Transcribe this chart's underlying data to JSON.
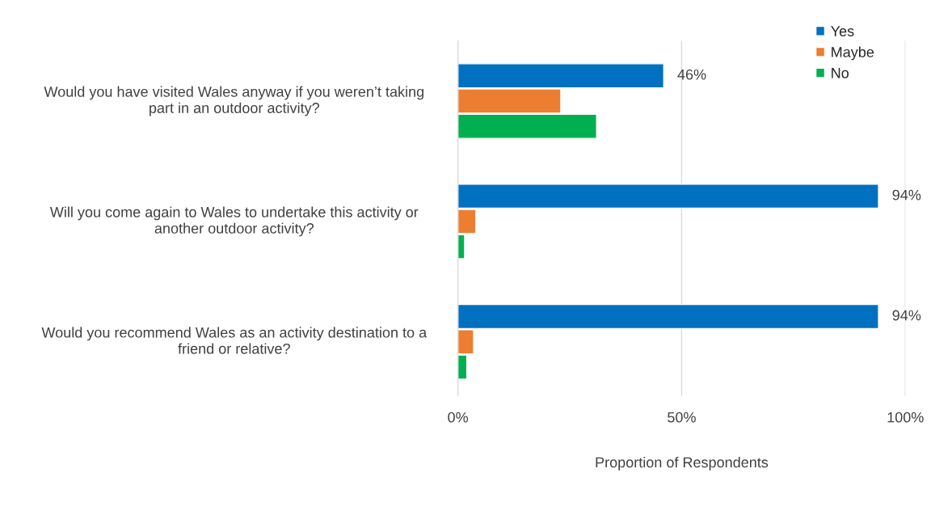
{
  "chart_data": {
    "type": "bar",
    "orientation": "horizontal",
    "xlabel": "Proportion of Respondents",
    "categories": [
      "Would you have visited Wales anyway if you weren’t taking part in an outdoor activity?",
      "Will you come again to Wales to undertake this activity or another outdoor activity?",
      "Would you recommend Wales as an activity destination to a friend or relative?"
    ],
    "series": [
      {
        "name": "Yes",
        "color": "#0070c0",
        "values": [
          46,
          94,
          94
        ],
        "value_labels": [
          "46%",
          "94%",
          "94%"
        ]
      },
      {
        "name": "Maybe",
        "color": "#ed7d31",
        "values": [
          23,
          4,
          3.5
        ]
      },
      {
        "name": "No",
        "color": "#00b050",
        "values": [
          31,
          1.5,
          2
        ]
      }
    ],
    "xlim": [
      0,
      100
    ],
    "xticks": [
      {
        "value": 0,
        "label": "0%"
      },
      {
        "value": 50,
        "label": "50%"
      },
      {
        "value": 100,
        "label": "100%"
      }
    ],
    "grid": "x",
    "legend": "top right"
  }
}
